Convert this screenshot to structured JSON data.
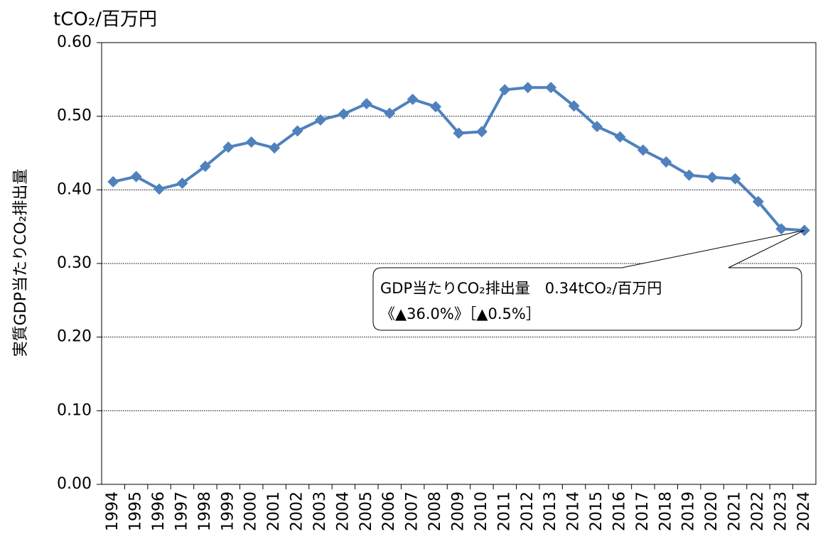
{
  "chart_data": {
    "type": "line",
    "y_unit": "tCO₂/百万円",
    "ylabel": "実質GDP当たりCO₂排出量",
    "categories": [
      "1994",
      "1995",
      "1996",
      "1997",
      "1998",
      "1999",
      "2000",
      "2001",
      "2002",
      "2003",
      "2004",
      "2005",
      "2006",
      "2007",
      "2008",
      "2009",
      "2010",
      "2011",
      "2012",
      "2013",
      "2014",
      "2015",
      "2016",
      "2017",
      "2018",
      "2019",
      "2020",
      "2021",
      "2022",
      "2023",
      "2024"
    ],
    "series": [
      {
        "name": "実質GDP当たりCO₂排出量",
        "color": "#4f81bd",
        "values": [
          0.411,
          0.418,
          0.401,
          0.409,
          0.432,
          0.458,
          0.465,
          0.457,
          0.48,
          0.495,
          0.503,
          0.517,
          0.504,
          0.523,
          0.513,
          0.477,
          0.479,
          0.536,
          0.539,
          0.539,
          0.514,
          0.486,
          0.472,
          0.454,
          0.438,
          0.42,
          0.417,
          0.415,
          0.384,
          0.347,
          0.345
        ]
      }
    ],
    "ylim": [
      0,
      0.6
    ],
    "yticks": [
      {
        "value": 0,
        "label": "0.00"
      },
      {
        "value": 0.1,
        "label": "0.10"
      },
      {
        "value": 0.2,
        "label": "0.20"
      },
      {
        "value": 0.3,
        "label": "0.30"
      },
      {
        "value": 0.4,
        "label": "0.40"
      },
      {
        "value": 0.5,
        "label": "0.50"
      },
      {
        "value": 0.6,
        "label": "0.60"
      }
    ],
    "grid": true,
    "annotation": [
      "GDP当たりCO₂排出量　0.34tCO₂/百万円",
      "《▲36.0%》［▲0.5%］"
    ]
  }
}
